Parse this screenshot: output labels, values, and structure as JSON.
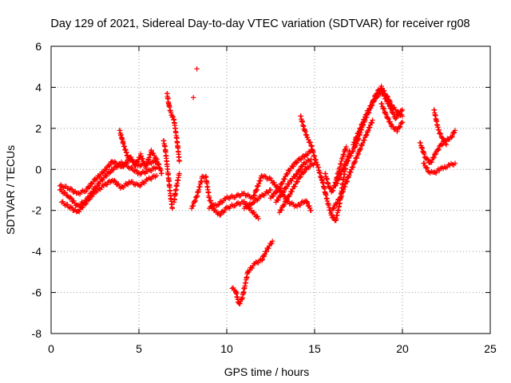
{
  "chart_data": {
    "type": "scatter",
    "title": "Day 129 of 2021, Sidereal Day-to-day VTEC variation (SDTVAR) for receiver rg08",
    "xlabel": "GPS time / hours",
    "ylabel": "SDTVAR / TECUs",
    "xlim": [
      0,
      25
    ],
    "ylim": [
      -8,
      6
    ],
    "xticks": [
      0,
      5,
      10,
      15,
      20,
      25
    ],
    "yticks": [
      -8,
      -6,
      -4,
      -2,
      0,
      2,
      4,
      6
    ],
    "grid": true,
    "marker": "+",
    "color": "#ff0000",
    "series": [
      {
        "name": "SDTVAR",
        "traces": [
          [
            [
              0.5,
              -1.0
            ],
            [
              1.0,
              -1.3
            ],
            [
              1.5,
              -1.8
            ],
            [
              2.0,
              -1.5
            ],
            [
              2.5,
              -0.9
            ],
            [
              3.0,
              -0.4
            ],
            [
              3.5,
              0.0
            ],
            [
              4.0,
              0.3
            ],
            [
              4.5,
              0.1
            ],
            [
              5.0,
              -0.2
            ],
            [
              5.5,
              -0.1
            ],
            [
              6.0,
              0.1
            ]
          ],
          [
            [
              0.5,
              -0.8
            ],
            [
              1.0,
              -0.9
            ],
            [
              1.5,
              -1.2
            ],
            [
              2.0,
              -1.0
            ],
            [
              2.5,
              -0.5
            ],
            [
              3.0,
              -0.1
            ],
            [
              3.5,
              0.4
            ],
            [
              4.0,
              0.1
            ],
            [
              4.5,
              0.5
            ],
            [
              5.0,
              0.2
            ],
            [
              5.5,
              0.3
            ],
            [
              6.0,
              0.4
            ]
          ],
          [
            [
              0.6,
              -1.6
            ],
            [
              1.0,
              -1.8
            ],
            [
              1.5,
              -2.1
            ],
            [
              2.0,
              -1.6
            ],
            [
              2.5,
              -1.1
            ],
            [
              3.0,
              -0.8
            ],
            [
              3.5,
              -0.5
            ],
            [
              4.0,
              -0.9
            ],
            [
              4.5,
              -0.6
            ],
            [
              5.0,
              -0.8
            ],
            [
              5.5,
              -0.5
            ],
            [
              6.0,
              -0.3
            ]
          ],
          [
            [
              3.9,
              1.9
            ],
            [
              4.0,
              1.6
            ],
            [
              4.1,
              1.3
            ],
            [
              4.2,
              1.0
            ],
            [
              4.3,
              0.8
            ],
            [
              4.4,
              0.5
            ]
          ],
          [
            [
              4.5,
              0.6
            ],
            [
              4.8,
              0.2
            ],
            [
              5.1,
              0.7
            ],
            [
              5.4,
              0.1
            ],
            [
              5.7,
              0.9
            ],
            [
              6.0,
              0.5
            ],
            [
              6.3,
              -0.2
            ]
          ],
          [
            [
              6.6,
              3.7
            ],
            [
              6.7,
              3.2
            ],
            [
              6.8,
              2.8
            ],
            [
              6.9,
              2.6
            ],
            [
              7.0,
              2.4
            ],
            [
              7.1,
              1.8
            ],
            [
              7.2,
              1.2
            ],
            [
              7.3,
              0.4
            ]
          ],
          [
            [
              6.4,
              1.4
            ],
            [
              6.5,
              1.0
            ],
            [
              6.6,
              0.2
            ],
            [
              6.7,
              -0.5
            ],
            [
              6.8,
              -1.3
            ],
            [
              6.9,
              -1.9
            ]
          ],
          [
            [
              7.0,
              -1.6
            ],
            [
              7.1,
              -1.0
            ],
            [
              7.2,
              -0.6
            ],
            [
              7.3,
              -0.2
            ]
          ],
          [
            [
              8.0,
              -1.9
            ],
            [
              8.3,
              -1.3
            ],
            [
              8.6,
              -0.4
            ],
            [
              8.8,
              -0.3
            ],
            [
              9.0,
              -1.4
            ],
            [
              9.3,
              -2.0
            ],
            [
              9.6,
              -2.2
            ],
            [
              10.0,
              -1.9
            ],
            [
              10.5,
              -1.7
            ],
            [
              11.0,
              -1.6
            ],
            [
              11.5,
              -2.1
            ],
            [
              11.8,
              -2.4
            ]
          ],
          [
            [
              9.0,
              -1.9
            ],
            [
              9.5,
              -1.7
            ],
            [
              10.0,
              -1.4
            ],
            [
              10.5,
              -1.3
            ],
            [
              11.0,
              -1.2
            ],
            [
              11.5,
              -1.4
            ],
            [
              12.0,
              -0.3
            ],
            [
              12.5,
              -0.5
            ],
            [
              13.0,
              -1.0
            ],
            [
              13.5,
              -1.6
            ],
            [
              14.0,
              -1.8
            ],
            [
              14.5,
              -1.5
            ],
            [
              14.8,
              -2.0
            ]
          ],
          [
            [
              11.0,
              -1.9
            ],
            [
              11.5,
              -1.6
            ],
            [
              12.0,
              -1.3
            ],
            [
              12.5,
              -1.0
            ]
          ],
          [
            [
              10.3,
              -5.8
            ],
            [
              10.5,
              -5.9
            ],
            [
              10.7,
              -6.6
            ],
            [
              10.9,
              -6.2
            ],
            [
              11.2,
              -5.0
            ],
            [
              11.6,
              -4.6
            ],
            [
              12.0,
              -4.4
            ],
            [
              12.3,
              -3.9
            ],
            [
              12.6,
              -3.5
            ]
          ],
          [
            [
              12.5,
              -1.4
            ],
            [
              13.0,
              -0.9
            ],
            [
              13.5,
              -0.1
            ],
            [
              14.0,
              0.4
            ],
            [
              14.5,
              0.7
            ],
            [
              14.8,
              0.9
            ]
          ],
          [
            [
              12.8,
              -1.6
            ],
            [
              13.2,
              -1.1
            ],
            [
              13.6,
              -0.6
            ],
            [
              14.0,
              -0.2
            ],
            [
              14.4,
              0.3
            ],
            [
              14.8,
              0.5
            ]
          ],
          [
            [
              13.0,
              -2.1
            ],
            [
              13.4,
              -1.5
            ],
            [
              13.8,
              -0.9
            ],
            [
              14.2,
              -0.3
            ],
            [
              14.6,
              0.1
            ],
            [
              15.0,
              0.3
            ]
          ],
          [
            [
              14.2,
              2.6
            ],
            [
              14.4,
              2.0
            ],
            [
              14.6,
              1.5
            ],
            [
              14.8,
              1.2
            ],
            [
              15.0,
              0.6
            ],
            [
              15.2,
              0.1
            ],
            [
              15.4,
              -0.5
            ]
          ],
          [
            [
              15.4,
              -0.4
            ],
            [
              15.6,
              -1.1
            ],
            [
              15.8,
              -1.8
            ],
            [
              16.0,
              -2.3
            ],
            [
              16.2,
              -2.5
            ],
            [
              16.4,
              -1.8
            ],
            [
              16.6,
              -0.7
            ],
            [
              16.8,
              0.3
            ],
            [
              17.0,
              0.9
            ]
          ],
          [
            [
              15.6,
              -0.2
            ],
            [
              15.8,
              -0.8
            ],
            [
              16.0,
              -1.1
            ],
            [
              16.2,
              -0.6
            ],
            [
              16.4,
              0.0
            ],
            [
              16.6,
              0.6
            ],
            [
              16.8,
              1.1
            ]
          ],
          [
            [
              16.0,
              -2.0
            ],
            [
              16.5,
              -1.3
            ],
            [
              17.0,
              -0.2
            ],
            [
              17.5,
              0.8
            ],
            [
              18.0,
              1.8
            ],
            [
              18.3,
              2.4
            ]
          ],
          [
            [
              16.2,
              -0.8
            ],
            [
              16.6,
              0.0
            ],
            [
              17.0,
              0.6
            ],
            [
              17.4,
              1.3
            ],
            [
              17.8,
              2.3
            ],
            [
              18.2,
              3.0
            ],
            [
              18.5,
              3.7
            ],
            [
              18.8,
              4.0
            ],
            [
              19.1,
              3.6
            ],
            [
              19.4,
              3.1
            ],
            [
              19.7,
              2.8
            ],
            [
              20.0,
              2.6
            ]
          ],
          [
            [
              17.2,
              1.2
            ],
            [
              17.6,
              2.0
            ],
            [
              18.0,
              2.8
            ],
            [
              18.4,
              3.4
            ],
            [
              18.8,
              3.8
            ],
            [
              19.2,
              3.2
            ],
            [
              19.6,
              2.5
            ],
            [
              20.0,
              2.9
            ]
          ],
          [
            [
              18.8,
              3.2
            ],
            [
              19.1,
              2.6
            ],
            [
              19.4,
              2.1
            ],
            [
              19.7,
              1.9
            ],
            [
              20.0,
              2.3
            ]
          ],
          [
            [
              21.0,
              1.3
            ],
            [
              21.3,
              0.6
            ],
            [
              21.6,
              0.3
            ],
            [
              21.9,
              0.8
            ],
            [
              22.2,
              1.2
            ],
            [
              22.5,
              1.4
            ],
            [
              22.8,
              1.6
            ],
            [
              23.0,
              1.9
            ]
          ],
          [
            [
              21.2,
              0.3
            ],
            [
              21.5,
              -0.1
            ],
            [
              21.8,
              -0.2
            ],
            [
              22.1,
              0.0
            ],
            [
              22.4,
              0.1
            ],
            [
              22.7,
              0.2
            ],
            [
              23.0,
              0.3
            ]
          ],
          [
            [
              21.8,
              2.9
            ],
            [
              21.9,
              2.5
            ],
            [
              22.0,
              2.1
            ],
            [
              22.1,
              1.8
            ],
            [
              22.3,
              1.5
            ],
            [
              22.5,
              1.2
            ]
          ]
        ],
        "isolated_points": [
          [
            8.3,
            4.9
          ],
          [
            8.1,
            3.5
          ]
        ]
      }
    ]
  }
}
